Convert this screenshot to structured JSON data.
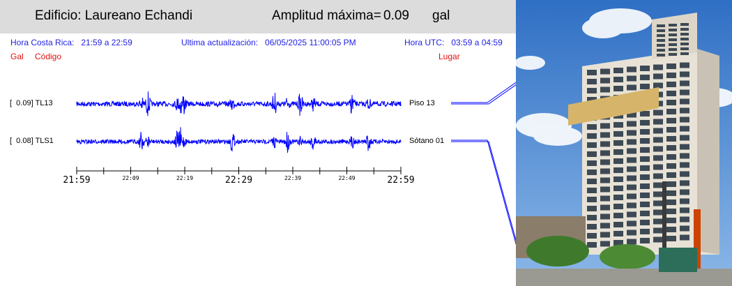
{
  "header": {
    "building_label": "Edificio: Laureano Echandi",
    "amp_label": "Amplitud máxima=",
    "amp_value": "0.09",
    "amp_unit": "gal"
  },
  "info": {
    "cr_label": "Hora Costa Rica:",
    "cr_value": "21:59 a 22:59",
    "update_label": "Ultima actualización:",
    "update_value": "06/05/2025 11:00:05 PM",
    "utc_label": "Hora UTC:",
    "utc_value": "03:59 a 04:59"
  },
  "columns": {
    "gal": "Gal",
    "codigo": "Código",
    "lugar": "Lugar"
  },
  "colors": {
    "trace": "#0000ff",
    "header_bg": "#dcdcdc",
    "info_text": "#1e1ee6",
    "column_header": "#e01010"
  },
  "chart_data": {
    "type": "line",
    "x_unit": "time (Costa Rica)",
    "x_range": [
      "21:59",
      "22:59"
    ],
    "major_ticks": [
      "21:59",
      "22:29",
      "22:59"
    ],
    "minor_ticks": [
      "22:09",
      "22:19",
      "22:39",
      "22:49"
    ],
    "series": [
      {
        "code": "TL13",
        "gal_label": "[  0.09] TL13",
        "peak_gal": 0.09,
        "place": "Piso 13"
      },
      {
        "code": "TLS1",
        "gal_label": "[  0.08] TLS1",
        "peak_gal": 0.08,
        "place": "Sótano 01"
      }
    ]
  },
  "photo": {
    "icon": "building-photo-icon"
  }
}
